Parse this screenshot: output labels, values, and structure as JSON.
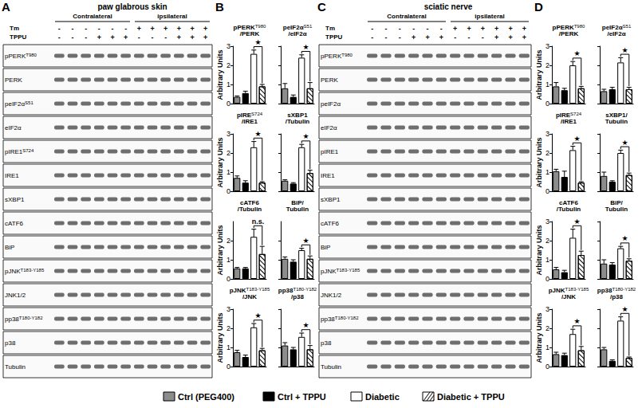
{
  "groups": [
    {
      "name": "Ctrl (PEG400)",
      "color": "#8c8c8c"
    },
    {
      "name": "Ctrl + TPPU",
      "color": "#000000"
    },
    {
      "name": "Diabetic",
      "color": "#ffffff"
    },
    {
      "name": "Diabetic + TPPU",
      "color": "#ffffff"
    }
  ],
  "blots": [
    {
      "panel": "A",
      "title": "paw glabrous skin",
      "sides": [
        "Contralateral",
        "ipsilateral"
      ],
      "treatments": [
        {
          "name": "Tm",
          "signs": [
            "-",
            "-",
            "-",
            "-",
            "-",
            "-",
            "+",
            "+",
            "+",
            "+",
            "+",
            "+"
          ]
        },
        {
          "name": "TPPU",
          "signs": [
            "-",
            "-",
            "-",
            "+",
            "+",
            "+",
            "-",
            "-",
            "-",
            "+",
            "+",
            "+"
          ]
        }
      ],
      "rows": [
        {
          "text": "pPERK",
          "sup": "T980"
        },
        {
          "text": "PERK"
        },
        {
          "text": "peIF2α",
          "sup": "S51"
        },
        {
          "text": "eIF2α"
        },
        {
          "text": "pIRE1",
          "sup": "S724"
        },
        {
          "text": "IRE1"
        },
        {
          "text": "sXBP1"
        },
        {
          "text": "cATF6"
        },
        {
          "text": "BiP"
        },
        {
          "text": "pJNK",
          "sup": "T183-Y185"
        },
        {
          "text": "JNK1/2"
        },
        {
          "text": "pp38",
          "sup": "T180-Y182"
        },
        {
          "text": "p38"
        },
        {
          "text": "Tubulin"
        }
      ]
    },
    {
      "panel": "C",
      "title": "sciatic nerve",
      "sides": [
        "Contralateral",
        "ipsilateral"
      ],
      "treatments": [
        {
          "name": "Tm",
          "signs": [
            "-",
            "-",
            "-",
            "-",
            "-",
            "-",
            "+",
            "+",
            "+",
            "+",
            "+",
            "+"
          ]
        },
        {
          "name": "TPPU",
          "signs": [
            "-",
            "-",
            "-",
            "+",
            "+",
            "+",
            "-",
            "-",
            "-",
            "+",
            "+",
            "+"
          ]
        }
      ],
      "rows": [
        {
          "text": "pPERK",
          "sup": "T980"
        },
        {
          "text": "PERK"
        },
        {
          "text": "peIF2α"
        },
        {
          "text": "eIF2α"
        },
        {
          "text": "pIRE1"
        },
        {
          "text": "IRE1"
        },
        {
          "text": "sXBP1"
        },
        {
          "text": "cATF6"
        },
        {
          "text": "BiP"
        },
        {
          "text": "pJNK",
          "sup": "T183-Y185"
        },
        {
          "text": "JNK1/2"
        },
        {
          "text": "pp38",
          "sup": "T180-Y182"
        },
        {
          "text": "p38"
        },
        {
          "text": "Tubulin"
        }
      ]
    }
  ],
  "chart_data": [
    {
      "type": "bar",
      "panel": "B",
      "title": [
        [
          {
            "text": "pPERK"
          },
          {
            "text": "T980",
            "sup": true
          }
        ],
        [
          {
            "text": "/PERK"
          }
        ]
      ],
      "ylabel": "Arbitrary Units",
      "categories": [
        null,
        null,
        null,
        null
      ],
      "values": [
        0.35,
        0.55,
        2.6,
        0.9
      ],
      "errors": [
        0.05,
        0.1,
        0.2,
        0.1
      ],
      "ylim": [
        0,
        3
      ],
      "yticks": [
        0,
        1,
        2,
        3
      ],
      "significance": "★"
    },
    {
      "type": "bar",
      "title": [
        [
          {
            "text": "peIF2α"
          },
          {
            "text": "S51",
            "sup": true
          }
        ],
        [
          {
            "text": "/eIF2α"
          }
        ]
      ],
      "tick_labels": false,
      "categories": [
        null,
        null,
        null,
        null
      ],
      "values": [
        0.8,
        0.35,
        2.4,
        0.8
      ],
      "errors": [
        0.25,
        0.1,
        0.15,
        0.3
      ],
      "ylim": [
        0,
        3
      ],
      "yticks": [
        0,
        1,
        2,
        3
      ],
      "significance": "★"
    },
    {
      "type": "bar",
      "title": [
        [
          {
            "text": "pIRE"
          },
          {
            "text": "S724",
            "sup": true
          }
        ],
        [
          {
            "text": "/IRE1"
          }
        ]
      ],
      "ylabel": "Arbitrary Units",
      "categories": [
        null,
        null,
        null,
        null
      ],
      "values": [
        0.7,
        0.45,
        2.3,
        0.45
      ],
      "errors": [
        0.1,
        0.1,
        0.3,
        0.05
      ],
      "ylim": [
        0,
        3
      ],
      "yticks": [
        0,
        1,
        2,
        3
      ],
      "significance": "★"
    },
    {
      "type": "bar",
      "title": [
        [
          {
            "text": "sXBP1"
          }
        ],
        [
          {
            "text": "/Tubulin"
          }
        ]
      ],
      "tick_labels": false,
      "categories": [
        null,
        null,
        null,
        null
      ],
      "values": [
        0.55,
        0.4,
        2.3,
        0.95
      ],
      "errors": [
        0.05,
        0.05,
        0.15,
        0.15
      ],
      "ylim": [
        0,
        3
      ],
      "yticks": [
        0,
        1,
        2,
        3
      ],
      "significance": "★"
    },
    {
      "type": "bar",
      "title": [
        [
          {
            "text": "cATF6"
          }
        ],
        [
          {
            "text": "/Tubulin"
          }
        ]
      ],
      "ylabel": "Arbitrary Units",
      "categories": [
        null,
        null,
        null,
        null
      ],
      "values": [
        0.55,
        0.55,
        2.2,
        1.3
      ],
      "errors": [
        0.05,
        0.05,
        0.4,
        0.4
      ],
      "ylim": [
        0,
        3
      ],
      "yticks": [
        0,
        1,
        2
      ],
      "significance": "n.s."
    },
    {
      "type": "bar",
      "title": [
        [
          {
            "text": "BiP/"
          }
        ],
        [
          {
            "text": "Tubulin"
          }
        ]
      ],
      "tick_labels": false,
      "categories": [
        null,
        null,
        null,
        null
      ],
      "values": [
        1.05,
        0.9,
        1.5,
        1.05
      ],
      "errors": [
        0.1,
        0.1,
        0.1,
        0.15
      ],
      "ylim": [
        0,
        3
      ],
      "yticks": [
        0,
        1,
        2
      ],
      "significance": "★"
    },
    {
      "type": "bar",
      "title": [
        [
          {
            "text": "pJNK"
          },
          {
            "text": "T183-Y185",
            "sup": true
          }
        ],
        [
          {
            "text": "/JNK"
          }
        ]
      ],
      "ylabel": "Arbitrary Units",
      "categories": [
        null,
        null,
        null,
        null
      ],
      "values": [
        0.75,
        0.5,
        2.05,
        0.85
      ],
      "errors": [
        0.1,
        0.1,
        0.2,
        0.1
      ],
      "ylim": [
        0,
        3
      ],
      "yticks": [
        0,
        1,
        2,
        3
      ],
      "significance": "★"
    },
    {
      "type": "bar",
      "title": [
        [
          {
            "text": "pp38"
          },
          {
            "text": "T180-Y182",
            "sup": true
          }
        ],
        [
          {
            "text": "/p38"
          }
        ]
      ],
      "tick_labels": false,
      "categories": [
        null,
        null,
        null,
        null
      ],
      "values": [
        1.1,
        0.9,
        1.55,
        0.9
      ],
      "errors": [
        0.15,
        0.1,
        0.2,
        0.2
      ],
      "ylim": [
        0,
        3
      ],
      "yticks": [
        0,
        1,
        2,
        3
      ],
      "significance": "★"
    },
    {
      "type": "bar",
      "panel": "D",
      "title": [
        [
          {
            "text": "pPERK"
          },
          {
            "text": "T980",
            "sup": true
          }
        ],
        [
          {
            "text": "/PERK"
          }
        ]
      ],
      "ylabel": "Arbitrary Units",
      "categories": [
        null,
        null,
        null,
        null
      ],
      "values": [
        0.9,
        0.7,
        2.0,
        0.8
      ],
      "errors": [
        0.2,
        0.1,
        0.2,
        0.1
      ],
      "ylim": [
        0,
        3
      ],
      "yticks": [
        0,
        1,
        2,
        3
      ],
      "significance": "★"
    },
    {
      "type": "bar",
      "title": [
        [
          {
            "text": "peIF2α"
          },
          {
            "text": "S51",
            "sup": true
          }
        ],
        [
          {
            "text": "/eIF2α"
          }
        ]
      ],
      "tick_labels": false,
      "categories": [
        null,
        null,
        null,
        null
      ],
      "values": [
        0.65,
        0.75,
        2.15,
        0.75
      ],
      "errors": [
        0.1,
        0.1,
        0.25,
        0.1
      ],
      "ylim": [
        0,
        3
      ],
      "yticks": [
        0,
        1,
        2,
        3
      ],
      "significance": "★"
    },
    {
      "type": "bar",
      "title": [
        [
          {
            "text": "pIRE"
          },
          {
            "text": "S724",
            "sup": true
          }
        ],
        [
          {
            "text": "/IRE1"
          }
        ]
      ],
      "ylabel": "Arbitrary Units",
      "categories": [
        null,
        null,
        null,
        null
      ],
      "values": [
        1.05,
        0.75,
        2.15,
        0.45
      ],
      "errors": [
        0.1,
        0.3,
        0.2,
        0.05
      ],
      "ylim": [
        0,
        3
      ],
      "yticks": [
        0,
        1,
        2,
        3
      ],
      "significance": "★"
    },
    {
      "type": "bar",
      "title": [
        [
          {
            "text": "sXBP1/"
          }
        ],
        [
          {
            "text": "Tubulin"
          }
        ]
      ],
      "tick_labels": false,
      "categories": [
        null,
        null,
        null,
        null
      ],
      "values": [
        0.8,
        0.5,
        2.0,
        0.85
      ],
      "errors": [
        0.2,
        0.05,
        0.15,
        0.1
      ],
      "ylim": [
        0,
        3
      ],
      "yticks": [
        0,
        1,
        2,
        3
      ],
      "significance": "★"
    },
    {
      "type": "bar",
      "title": [
        [
          {
            "text": "cATF6"
          }
        ],
        [
          {
            "text": "/Tubulin"
          }
        ]
      ],
      "ylabel": "Arbitrary Units",
      "categories": [
        null,
        null,
        null,
        null
      ],
      "values": [
        0.5,
        0.35,
        2.15,
        1.25
      ],
      "errors": [
        0.1,
        0.1,
        0.45,
        0.2
      ],
      "ylim": [
        0,
        3
      ],
      "yticks": [
        0,
        1,
        2,
        3
      ],
      "significance": "★"
    },
    {
      "type": "bar",
      "title": [
        [
          {
            "text": "BiP/"
          }
        ],
        [
          {
            "text": "Tubulin"
          }
        ]
      ],
      "tick_labels": false,
      "categories": [
        null,
        null,
        null,
        null
      ],
      "values": [
        0.8,
        0.75,
        1.6,
        0.95
      ],
      "errors": [
        0.2,
        0.1,
        0.1,
        0.1
      ],
      "ylim": [
        0,
        3
      ],
      "yticks": [
        0,
        1,
        2,
        3
      ],
      "significance": "★"
    },
    {
      "type": "bar",
      "title": [
        [
          {
            "text": "pJNK"
          },
          {
            "text": "T183-Y185",
            "sup": true
          }
        ],
        [
          {
            "text": "/JNK"
          }
        ]
      ],
      "ylabel": "Arbitrary Units",
      "categories": [
        null,
        null,
        null,
        null
      ],
      "values": [
        0.65,
        0.6,
        1.7,
        0.85
      ],
      "errors": [
        0.1,
        0.1,
        0.25,
        0.2
      ],
      "ylim": [
        0,
        3
      ],
      "yticks": [
        0,
        1,
        2,
        3
      ],
      "significance": "★"
    },
    {
      "type": "bar",
      "title": [
        [
          {
            "text": "pp38"
          },
          {
            "text": "T180-Y182",
            "sup": true
          }
        ],
        [
          {
            "text": "/p38"
          }
        ]
      ],
      "tick_labels": false,
      "categories": [
        null,
        null,
        null,
        null
      ],
      "values": [
        0.9,
        0.3,
        2.4,
        0.45
      ],
      "errors": [
        0.1,
        0.05,
        0.2,
        0.05
      ],
      "ylim": [
        0,
        3
      ],
      "yticks": [
        0,
        1,
        2,
        3
      ],
      "significance": "★"
    }
  ]
}
